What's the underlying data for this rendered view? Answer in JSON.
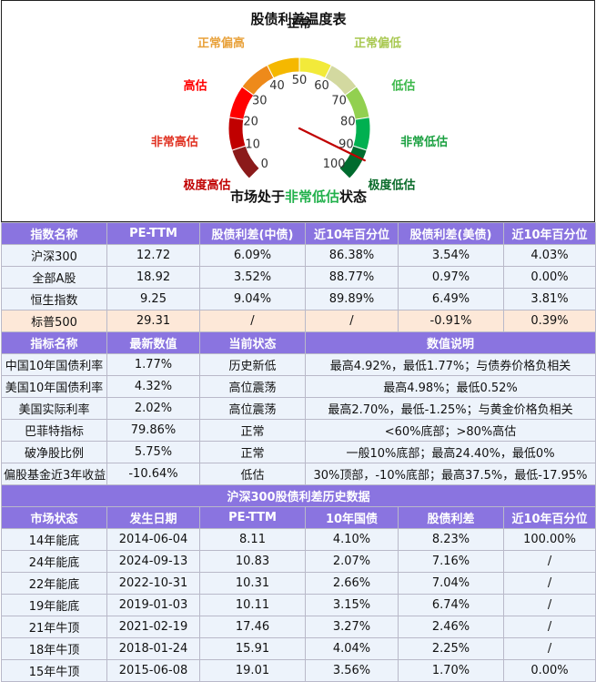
{
  "gauge": {
    "title": "股债利差温度表",
    "status_prefix": "市场处于",
    "status_value": "非常低估",
    "status_suffix": "状态",
    "status_color": "#22b14c",
    "needle_value": 93,
    "ticks": [
      "0",
      "10",
      "20",
      "30",
      "40",
      "50",
      "60",
      "70",
      "80",
      "90",
      "100"
    ],
    "segments": [
      {
        "from": 0,
        "to": 10,
        "color": "#8b1a1a"
      },
      {
        "from": 10,
        "to": 20,
        "color": "#c00000"
      },
      {
        "from": 20,
        "to": 30,
        "color": "#ff0000"
      },
      {
        "from": 30,
        "to": 40,
        "color": "#ee8a1a"
      },
      {
        "from": 40,
        "to": 50,
        "color": "#f5b800"
      },
      {
        "from": 50,
        "to": 60,
        "color": "#f2ea3a"
      },
      {
        "from": 60,
        "to": 70,
        "color": "#d3d9a0"
      },
      {
        "from": 70,
        "to": 80,
        "color": "#92d050"
      },
      {
        "from": 80,
        "to": 90,
        "color": "#00b050"
      },
      {
        "from": 90,
        "to": 100,
        "color": "#006b2e"
      }
    ],
    "zones": [
      {
        "label": "极度高估",
        "color": "#c00000"
      },
      {
        "label": "非常高估",
        "color": "#e03020"
      },
      {
        "label": "高估",
        "color": "#ff0000"
      },
      {
        "label": "正常偏高",
        "color": "#e8a13a"
      },
      {
        "label": "正常",
        "color": "#111111"
      },
      {
        "label": "正常偏低",
        "color": "#a8c850"
      },
      {
        "label": "低估",
        "color": "#3cb84a"
      },
      {
        "label": "非常低估",
        "color": "#1aa040"
      },
      {
        "label": "极度低估",
        "color": "#0a6b2a"
      }
    ]
  },
  "table1": {
    "headers": [
      "指数名称",
      "PE-TTM",
      "股债利差(中债)",
      "近10年百分位",
      "股债利差(美债)",
      "近10年百分位"
    ],
    "rows": [
      [
        "沪深300",
        "12.72",
        "6.09%",
        "86.38%",
        "3.54%",
        "4.03%"
      ],
      [
        "全部A股",
        "18.92",
        "3.52%",
        "88.77%",
        "0.97%",
        "0.00%"
      ],
      [
        "恒生指数",
        "9.25",
        "9.04%",
        "89.89%",
        "6.49%",
        "3.81%"
      ],
      [
        "标普500",
        "29.31",
        "/",
        "/",
        "-0.91%",
        "0.39%"
      ]
    ]
  },
  "table2": {
    "headers": [
      "指标名称",
      "最新数值",
      "当前状态",
      "数值说明"
    ],
    "rows": [
      [
        "中国10年国债利率",
        "1.77%",
        "历史新低",
        "最高4.92%，最低1.77%；与债券价格负相关"
      ],
      [
        "美国10年国债利率",
        "4.32%",
        "高位震荡",
        "最高4.98%；最低0.52%"
      ],
      [
        "美国实际利率",
        "2.02%",
        "高位震荡",
        "最高2.70%，最低-1.25%；与黄金价格负相关"
      ],
      [
        "巴菲特指标",
        "79.86%",
        "正常",
        "<60%底部；>80%高估"
      ],
      [
        "破净股比例",
        "5.75%",
        "正常",
        "一般10%底部；最高24.40%，最低0%"
      ],
      [
        "偏股基金近3年收益",
        "-10.64%",
        "低估",
        "30%顶部，-10%底部；最高37.5%，最低-17.95%"
      ]
    ]
  },
  "table3": {
    "title": "沪深300股债利差历史数据",
    "headers": [
      "市场状态",
      "发生日期",
      "PE-TTM",
      "10年国债",
      "股债利差",
      "近10年百分位"
    ],
    "rows": [
      [
        "14年能底",
        "2014-06-04",
        "8.11",
        "4.10%",
        "8.23%",
        "100.00%"
      ],
      [
        "24年能底",
        "2024-09-13",
        "10.83",
        "2.07%",
        "7.16%",
        "/"
      ],
      [
        "22年能底",
        "2022-10-31",
        "10.31",
        "2.66%",
        "7.04%",
        "/"
      ],
      [
        "19年能底",
        "2019-01-03",
        "10.11",
        "3.15%",
        "6.74%",
        "/"
      ],
      [
        "21年牛顶",
        "2021-02-19",
        "17.46",
        "3.27%",
        "2.46%",
        "/"
      ],
      [
        "18年牛顶",
        "2018-01-24",
        "15.91",
        "4.04%",
        "2.25%",
        "/"
      ],
      [
        "15年牛顶",
        "2015-06-08",
        "19.01",
        "3.56%",
        "1.70%",
        "0.00%"
      ]
    ]
  },
  "chart_data": {
    "type": "gauge",
    "title": "股债利差温度表",
    "range": [
      0,
      100
    ],
    "value": 93,
    "ticks": [
      0,
      10,
      20,
      30,
      40,
      50,
      60,
      70,
      80,
      90,
      100
    ],
    "status": "非常低估"
  }
}
